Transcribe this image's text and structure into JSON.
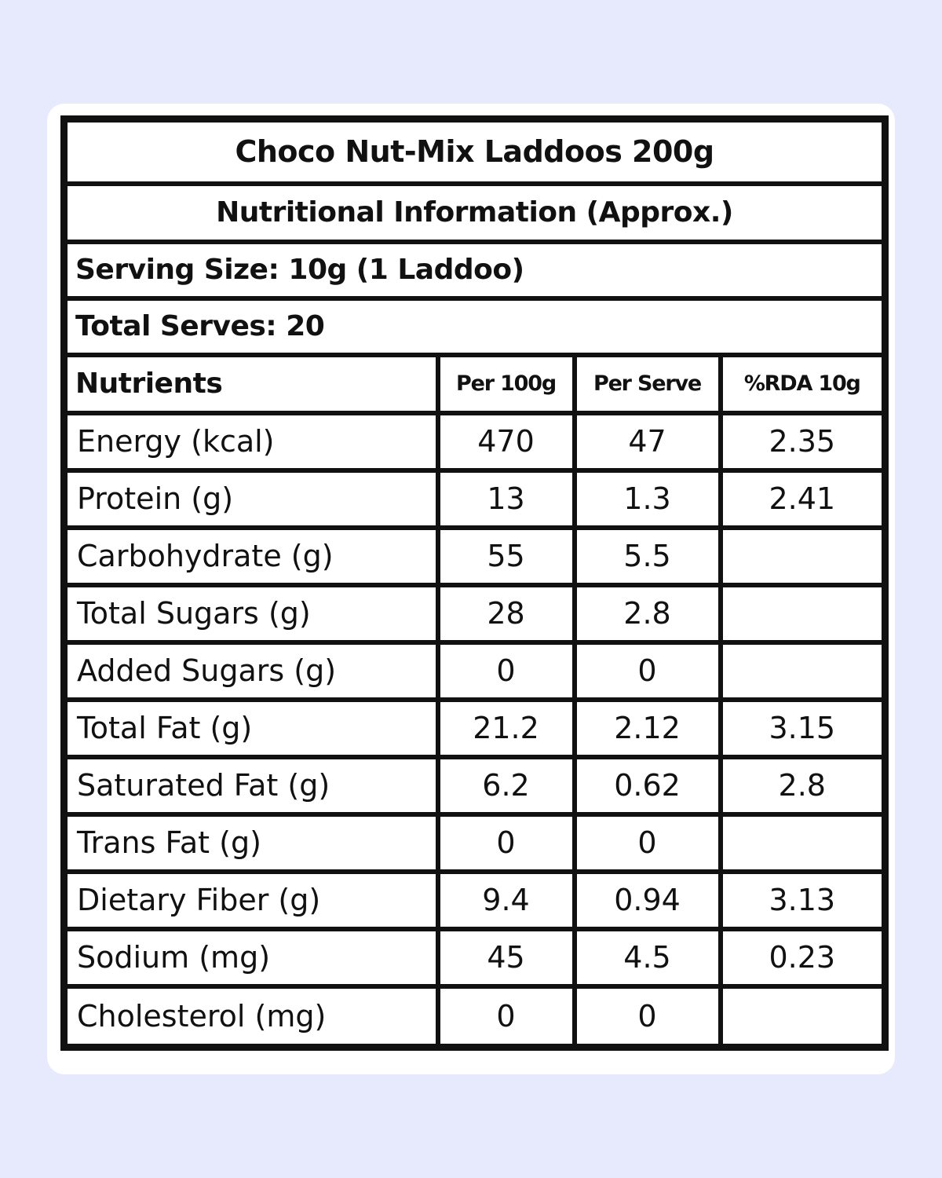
{
  "label": {
    "title": "Choco Nut-Mix Laddoos 200g",
    "subtitle": "Nutritional Information (Approx.)",
    "serving_size": "Serving Size: 10g  (1 Laddoo)",
    "total_serves": "Total Serves: 20",
    "columns": [
      "Nutrients",
      "Per 100g",
      "Per Serve",
      "%RDA 10g"
    ],
    "rows": [
      {
        "nutrient": "Energy (kcal)",
        "per_100g": "470",
        "per_serve": "47",
        "rda": "2.35"
      },
      {
        "nutrient": "Protein (g)",
        "per_100g": "13",
        "per_serve": "1.3",
        "rda": "2.41"
      },
      {
        "nutrient": "Carbohydrate (g)",
        "per_100g": "55",
        "per_serve": "5.5",
        "rda": ""
      },
      {
        "nutrient": "Total Sugars (g)",
        "per_100g": "28",
        "per_serve": "2.8",
        "rda": ""
      },
      {
        "nutrient": "Added Sugars (g)",
        "per_100g": "0",
        "per_serve": "0",
        "rda": ""
      },
      {
        "nutrient": "Total Fat (g)",
        "per_100g": "21.2",
        "per_serve": "2.12",
        "rda": "3.15"
      },
      {
        "nutrient": "Saturated Fat (g)",
        "per_100g": "6.2",
        "per_serve": "0.62",
        "rda": "2.8"
      },
      {
        "nutrient": "Trans Fat (g)",
        "per_100g": "0",
        "per_serve": "0",
        "rda": ""
      },
      {
        "nutrient": "Dietary Fiber (g)",
        "per_100g": "9.4",
        "per_serve": "0.94",
        "rda": "3.13"
      },
      {
        "nutrient": "Sodium (mg)",
        "per_100g": "45",
        "per_serve": "4.5",
        "rda": "0.23"
      },
      {
        "nutrient": "Cholesterol (mg)",
        "per_100g": "0",
        "per_serve": "0",
        "rda": ""
      }
    ]
  },
  "colors": {
    "background": "#e6eafc",
    "card": "#ffffff",
    "ink": "#111111"
  }
}
